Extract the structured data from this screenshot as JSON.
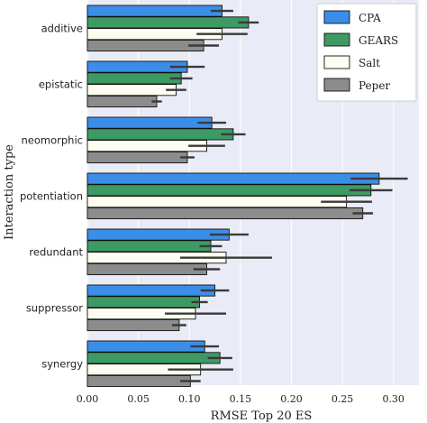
{
  "chart_data": {
    "type": "bar",
    "orientation": "horizontal",
    "categories": [
      "additive",
      "epistatic",
      "neomorphic",
      "potentiation",
      "redundant",
      "suppressor",
      "synergy"
    ],
    "series": [
      {
        "name": "CPA",
        "color": "#3b8ee8",
        "values": [
          0.132,
          0.098,
          0.122,
          0.286,
          0.139,
          0.125,
          0.115
        ],
        "errors": [
          0.011,
          0.017,
          0.014,
          0.028,
          0.019,
          0.014,
          0.014
        ]
      },
      {
        "name": "GEARS",
        "color": "#3d9a63",
        "values": [
          0.158,
          0.092,
          0.143,
          0.278,
          0.121,
          0.11,
          0.13
        ],
        "errors": [
          0.01,
          0.011,
          0.012,
          0.021,
          0.011,
          0.008,
          0.012
        ]
      },
      {
        "name": "Salt",
        "color": "#fdfdf2",
        "values": [
          0.132,
          0.087,
          0.117,
          0.254,
          0.136,
          0.106,
          0.111
        ],
        "errors": [
          0.025,
          0.01,
          0.018,
          0.025,
          0.045,
          0.03,
          0.032
        ]
      },
      {
        "name": "Peper",
        "color": "#8c8c8c",
        "values": [
          0.114,
          0.068,
          0.098,
          0.27,
          0.117,
          0.09,
          0.101
        ],
        "errors": [
          0.015,
          0.005,
          0.007,
          0.01,
          0.013,
          0.007,
          0.01
        ]
      }
    ],
    "xlabel": "RMSE Top 20 ES",
    "ylabel": "Interaction type",
    "xlim": [
      0.0,
      0.325
    ],
    "xticks": [
      "0.00",
      "0.05",
      "0.10",
      "0.15",
      "0.20",
      "0.25",
      "0.30"
    ],
    "xtick_values": [
      0.0,
      0.05,
      0.1,
      0.15,
      0.2,
      0.25,
      0.3
    ],
    "grid": true,
    "legend_position": "top-right",
    "background_color": "#e9ebf6"
  }
}
